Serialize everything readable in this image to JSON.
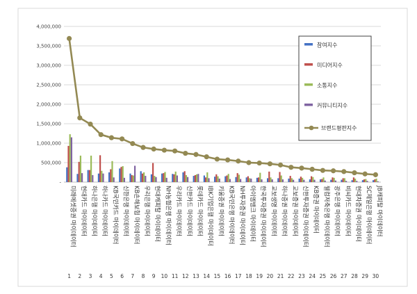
{
  "chart_data": {
    "type": "bar",
    "x": [
      "1",
      "2",
      "3",
      "4",
      "5",
      "6",
      "7",
      "8",
      "9",
      "10",
      "11",
      "12",
      "13",
      "14",
      "15",
      "16",
      "17",
      "18",
      "19",
      "20",
      "21",
      "22",
      "23",
      "24",
      "25",
      "26",
      "27",
      "28",
      "29",
      "30"
    ],
    "categories": [
      "미래에셋증권 마이데이터",
      "현대카드 마이데이터",
      "하나은행 마이데이터",
      "하나카드 마이데이터",
      "KB국민카드 마이데이터",
      "신한은행 마이데이터",
      "KB손해보험 마이데이터",
      "우리은행 마이데이터",
      "현대캐피탈 마이데이터",
      "NH농협은행 마이데이터",
      "우리카드 마이데이터",
      "신한카드 마이데이터",
      "롯데카드 마이데이터",
      "IBK기업은행 마이데이터",
      "키움증권 마이데이터",
      "KB국민은행 마이데이터",
      "NH투자증권 마이데이터",
      "아이엠뱅크 마이데이터",
      "한국투자증권 마이데이터",
      "교보생명 마이데이터",
      "하나증권 마이데이터",
      "교보증권 마이데이터",
      "신한투자증권 마이데이터",
      "KB증권 마이데이터",
      "웰컴저축은행 마이데이터",
      "광주은행 마이데이터",
      "비씨카드 마이데이터",
      "현대차증권 마이데이터",
      "SC제일은행 마이데이터",
      "JB캐피탈 마이데이터"
    ],
    "series": [
      {
        "name": "참여지수",
        "values": [
          380000,
          210000,
          310000,
          220000,
          250000,
          350000,
          220000,
          280000,
          200000,
          220000,
          210000,
          250000,
          160000,
          170000,
          140000,
          150000,
          130000,
          120000,
          110000,
          100000,
          100000,
          90000,
          90000,
          70000,
          70000,
          60000,
          60000,
          50000,
          50000,
          50000
        ]
      },
      {
        "name": "미디어지수",
        "values": [
          930000,
          520000,
          310000,
          690000,
          330000,
          390000,
          180000,
          220000,
          490000,
          230000,
          200000,
          280000,
          180000,
          120000,
          200000,
          170000,
          230000,
          150000,
          120000,
          270000,
          260000,
          160000,
          140000,
          150000,
          80000,
          120000,
          100000,
          120000,
          70000,
          70000
        ]
      },
      {
        "name": "소통지수",
        "values": [
          1230000,
          680000,
          680000,
          290000,
          540000,
          410000,
          170000,
          250000,
          160000,
          260000,
          270000,
          180000,
          200000,
          250000,
          150000,
          210000,
          190000,
          100000,
          240000,
          120000,
          170000,
          100000,
          110000,
          130000,
          120000,
          110000,
          100000,
          90000,
          80000,
          90000
        ]
      },
      {
        "name": "커뮤니티지수",
        "values": [
          1150000,
          230000,
          180000,
          220000,
          120000,
          110000,
          420000,
          160000,
          130000,
          110000,
          170000,
          130000,
          210000,
          100000,
          90000,
          80000,
          80000,
          90000,
          70000,
          70000,
          70000,
          60000,
          60000,
          60000,
          40000,
          40000,
          30000,
          30000,
          30000,
          20000
        ]
      },
      {
        "name": "브랜드평판지수",
        "values": [
          3690000,
          1650000,
          1490000,
          1220000,
          1140000,
          1110000,
          990000,
          890000,
          850000,
          820000,
          800000,
          740000,
          710000,
          650000,
          590000,
          570000,
          540000,
          500000,
          490000,
          470000,
          440000,
          380000,
          360000,
          330000,
          300000,
          290000,
          270000,
          240000,
          210000,
          190000
        ]
      }
    ],
    "colors": [
      "#4472C4",
      "#C0504D",
      "#9BBB59",
      "#8064A2",
      "#938953"
    ],
    "yticks": [
      "-",
      "500,000",
      "1,000,000",
      "1,500,000",
      "2,000,000",
      "2,500,000",
      "3,000,000",
      "3,500,000",
      "4,000,000"
    ],
    "ylim": [
      0,
      4000000
    ],
    "title": "",
    "xlabel": "",
    "ylabel": "",
    "grid": true,
    "legend_position": "top-right"
  }
}
